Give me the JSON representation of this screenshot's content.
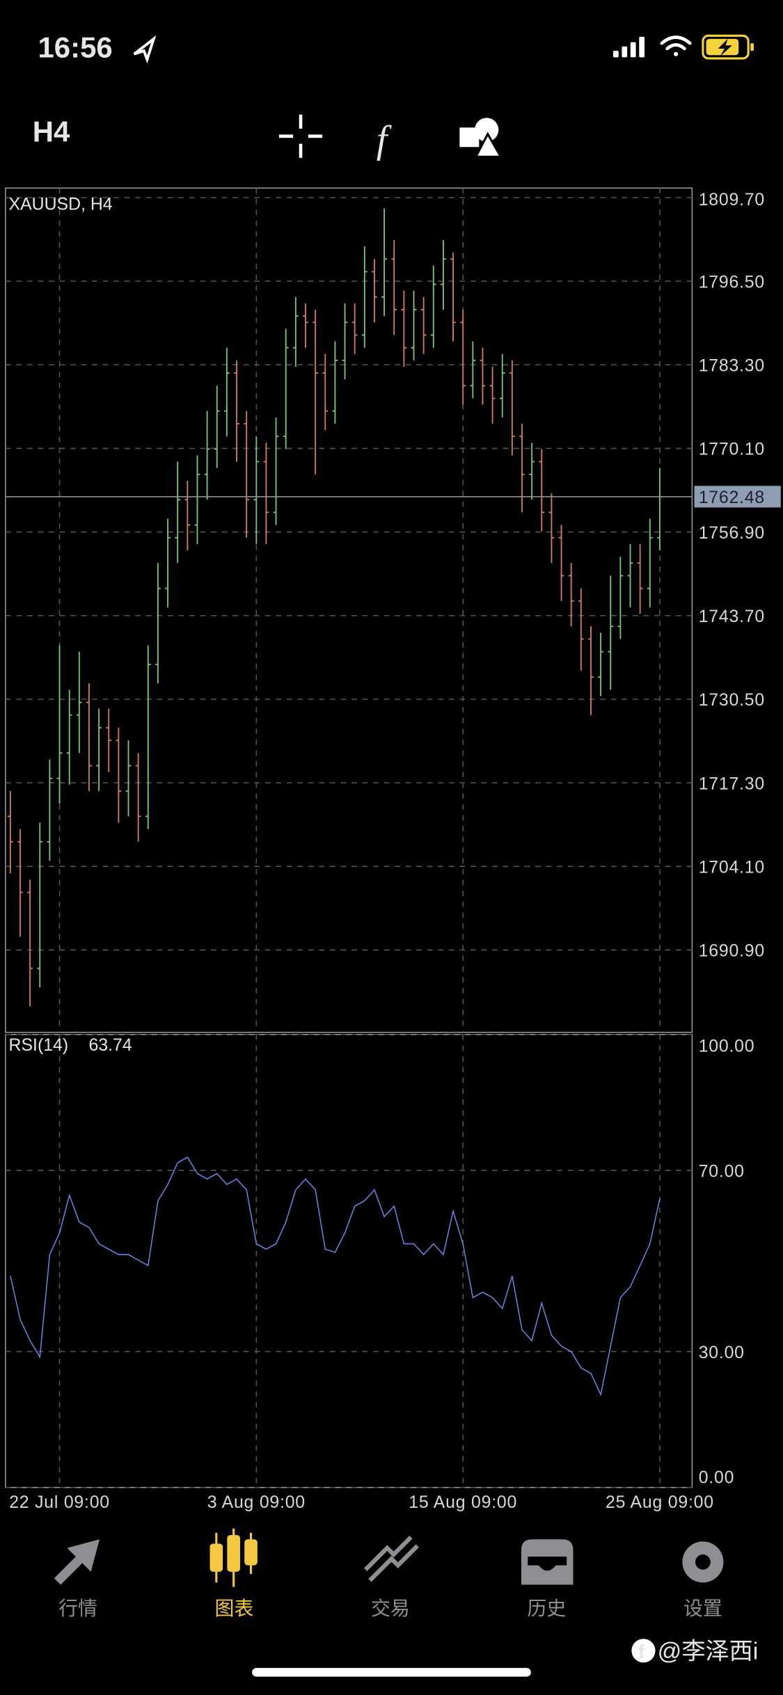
{
  "status_bar": {
    "time": "16:56"
  },
  "toolbar": {
    "timeframe": "H4"
  },
  "chart_data": [
    {
      "type": "ohlc",
      "title": "XAUUSD, H4",
      "categories": [
        null,
        null,
        null,
        null,
        null,
        "22 Jul 09:00",
        null,
        null,
        null,
        null,
        null,
        null,
        null,
        null,
        null,
        null,
        null,
        null,
        null,
        null,
        null,
        null,
        null,
        null,
        null,
        "3 Aug 09:00",
        null,
        null,
        null,
        null,
        null,
        null,
        null,
        null,
        null,
        null,
        null,
        null,
        null,
        null,
        null,
        null,
        null,
        null,
        null,
        null,
        "15 Aug 09:00",
        null,
        null,
        null,
        null,
        null,
        null,
        null,
        null,
        null,
        null,
        null,
        null,
        null,
        null,
        null,
        null,
        null,
        null,
        null,
        "25 Aug 09:00"
      ],
      "open": [
        1712,
        1708,
        1700,
        1688,
        1708,
        1718,
        1722,
        1728,
        1730,
        1720,
        1726,
        1724,
        1716,
        1720,
        1712,
        1736,
        1748,
        1756,
        1762,
        1758,
        1766,
        1770,
        1776,
        1782,
        1774,
        1762,
        1768,
        1760,
        1772,
        1786,
        1791,
        1790,
        1782,
        1776,
        1784,
        1790,
        1788,
        1798,
        1794,
        1800,
        1792,
        1786,
        1792,
        1788,
        1796,
        1800,
        1790,
        1780,
        1784,
        1780,
        1778,
        1782,
        1772,
        1766,
        1768,
        1760,
        1756,
        1750,
        1746,
        1740,
        1734,
        1738,
        1742,
        1750,
        1752,
        1748,
        1756
      ],
      "high": [
        1716,
        1710,
        1702,
        1711,
        1721,
        1739,
        1732,
        1738,
        1733,
        1729,
        1729,
        1726,
        1724,
        1722,
        1739,
        1752,
        1759,
        1768,
        1765,
        1769,
        1776,
        1780,
        1786,
        1784,
        1776,
        1772,
        1771,
        1775,
        1789,
        1794,
        1793,
        1792,
        1785,
        1787,
        1793,
        1793,
        1802,
        1800,
        1808,
        1803,
        1795,
        1795,
        1794,
        1799,
        1803,
        1801,
        1792,
        1787,
        1786,
        1783,
        1785,
        1784,
        1774,
        1771,
        1770,
        1763,
        1758,
        1752,
        1748,
        1742,
        1741,
        1750,
        1753,
        1755,
        1755,
        1759,
        1767
      ],
      "low": [
        1703,
        1693,
        1682,
        1685,
        1705,
        1714,
        1717,
        1722,
        1716,
        1716,
        1719,
        1711,
        1712,
        1708,
        1710,
        1733,
        1745,
        1752,
        1754,
        1755,
        1762,
        1767,
        1772,
        1768,
        1756,
        1755,
        1755,
        1758,
        1770,
        1783,
        1786,
        1766,
        1773,
        1774,
        1781,
        1785,
        1786,
        1790,
        1791,
        1788,
        1783,
        1784,
        1785,
        1786,
        1792,
        1787,
        1777,
        1778,
        1777,
        1774,
        1775,
        1769,
        1760,
        1762,
        1757,
        1752,
        1746,
        1742,
        1735,
        1728,
        1731,
        1732,
        1740,
        1745,
        1744,
        1745,
        1754
      ],
      "close": [
        1708,
        1700,
        1688,
        1708,
        1718,
        1722,
        1728,
        1730,
        1720,
        1726,
        1724,
        1716,
        1720,
        1712,
        1736,
        1748,
        1756,
        1762,
        1758,
        1766,
        1770,
        1776,
        1782,
        1774,
        1762,
        1768,
        1760,
        1772,
        1786,
        1791,
        1790,
        1782,
        1776,
        1784,
        1790,
        1788,
        1798,
        1794,
        1800,
        1792,
        1786,
        1792,
        1788,
        1796,
        1800,
        1790,
        1780,
        1784,
        1780,
        1778,
        1782,
        1772,
        1766,
        1768,
        1760,
        1756,
        1750,
        1746,
        1740,
        1734,
        1738,
        1742,
        1750,
        1752,
        1748,
        1756,
        1762.48
      ],
      "up_color": "#7cc07c",
      "down_color": "#d07a66",
      "ylim": [
        1677.9,
        1811.2
      ],
      "yticks": [
        {
          "value": 1809.7,
          "label": "1809.70"
        },
        {
          "value": 1796.5,
          "label": "1796.50"
        },
        {
          "value": 1783.3,
          "label": "1783.30"
        },
        {
          "value": 1770.1,
          "label": "1770.10"
        },
        {
          "value": 1756.9,
          "label": "1756.90"
        },
        {
          "value": 1743.7,
          "label": "1743.70"
        },
        {
          "value": 1730.5,
          "label": "1730.50"
        },
        {
          "value": 1717.3,
          "label": "1717.30"
        },
        {
          "value": 1704.1,
          "label": "1704.10"
        },
        {
          "value": 1690.9,
          "label": "1690.90"
        }
      ],
      "grid": true
    },
    {
      "type": "line",
      "title": "RSI(14)",
      "values": [
        46.7,
        37.1,
        32.4,
        28.8,
        51.4,
        56.2,
        64.5,
        58.6,
        57.4,
        53.8,
        52.6,
        51.4,
        51.4,
        50.2,
        49.0,
        63.3,
        66.9,
        71.7,
        72.9,
        69.3,
        68.1,
        69.3,
        66.9,
        68.1,
        65.7,
        53.8,
        52.6,
        53.8,
        58.6,
        65.7,
        68.1,
        65.7,
        52.6,
        51.9,
        56.2,
        62.1,
        63.3,
        65.7,
        59.8,
        62.1,
        53.8,
        53.8,
        51.4,
        53.8,
        51.4,
        61.0,
        53.8,
        41.9,
        43.1,
        41.9,
        39.5,
        46.7,
        34.8,
        32.4,
        40.7,
        33.6,
        31.2,
        30.0,
        26.4,
        25.2,
        20.5,
        31.2,
        41.9,
        44.3,
        49.0,
        53.8,
        63.74
      ],
      "color": "#6f7fe0",
      "ylim": [
        0,
        100
      ],
      "yticks": [
        {
          "value": 100,
          "label": "100.00"
        },
        {
          "value": 70,
          "label": "70.00"
        },
        {
          "value": 30,
          "label": "30.00"
        },
        {
          "value": 0,
          "label": "0.00"
        }
      ],
      "grid": true
    }
  ],
  "tabs": [
    "行情",
    "图表",
    "交易",
    "历史",
    "设置"
  ],
  "active_tab": 1,
  "watermark": "@李泽西i"
}
